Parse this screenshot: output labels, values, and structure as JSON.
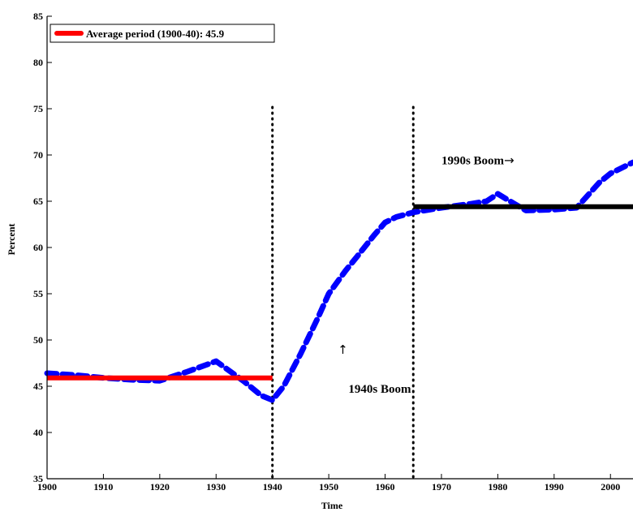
{
  "chart_data": {
    "type": "line",
    "xlabel": "Time",
    "ylabel": "Percent",
    "xlim": [
      1900,
      2004
    ],
    "ylim": [
      35,
      85
    ],
    "x_ticks": [
      1900,
      1910,
      1920,
      1930,
      1940,
      1950,
      1960,
      1970,
      1980,
      1990,
      2000
    ],
    "y_ticks": [
      35,
      40,
      45,
      50,
      55,
      60,
      65,
      70,
      75,
      80,
      85
    ],
    "grid": false,
    "legend": {
      "placement": "top-left",
      "entries": [
        {
          "label": "Average period (1900-40): 45.9",
          "color": "#ff0000"
        }
      ]
    },
    "series": [
      {
        "color": "#0000ff",
        "style": "dashed",
        "x": [
          1900,
          1905,
          1910,
          1915,
          1920,
          1925,
          1930,
          1935,
          1938,
          1940,
          1942,
          1945,
          1948,
          1950,
          1953,
          1955,
          1958,
          1960,
          1962,
          1965,
          1968,
          1970,
          1975,
          1978,
          1980,
          1983,
          1985,
          1990,
          1994,
          1998,
          2000,
          2004
        ],
        "y": [
          46.4,
          46.2,
          45.9,
          45.7,
          45.6,
          46.6,
          47.7,
          45.5,
          44.0,
          43.5,
          45.0,
          48.5,
          52.3,
          55.0,
          57.5,
          59.0,
          61.3,
          62.7,
          63.3,
          63.8,
          64.1,
          64.3,
          64.7,
          65.0,
          65.8,
          64.7,
          64.0,
          64.1,
          64.3,
          67.0,
          68.0,
          69.2
        ]
      },
      {
        "color": "#ff0000",
        "style": "solid",
        "x": [
          1900,
          1940
        ],
        "y": [
          45.9,
          45.9
        ]
      },
      {
        "color": "#000000",
        "style": "solid",
        "x": [
          1965,
          2004
        ],
        "y": [
          64.4,
          64.4
        ]
      }
    ],
    "vlines": [
      {
        "x": 1940,
        "style": "dotted",
        "color": "#000000"
      },
      {
        "x": 1965,
        "style": "dotted",
        "color": "#000000"
      }
    ],
    "annotations": [
      {
        "text": "1940s Boom",
        "x": 1953.5,
        "y": 44.3
      },
      {
        "text": "↑",
        "x": 1952.5,
        "y": 48.5
      },
      {
        "text": "1990s Boom",
        "x": 1970,
        "y": 69.0
      },
      {
        "text": "→",
        "x": 1982,
        "y": 69.0
      }
    ]
  }
}
